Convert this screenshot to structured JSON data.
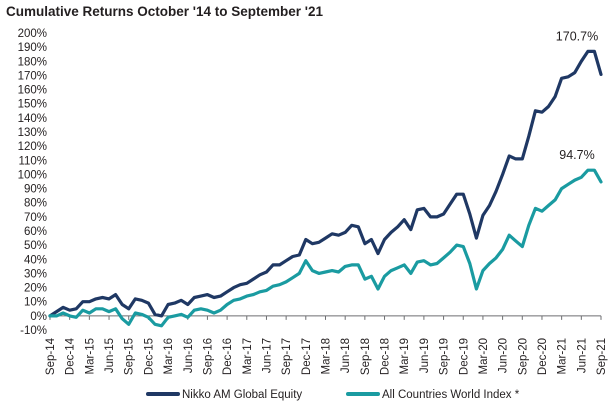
{
  "chart_data": {
    "type": "line",
    "title": "Cumulative Returns  October '14  to September '21",
    "ylim": [
      -10,
      200
    ],
    "ytick_step": 10,
    "ytick_suffix": "%",
    "grid": false,
    "legend_position": "bottom",
    "x": [
      "Sep-14",
      "Oct-14",
      "Nov-14",
      "Dec-14",
      "Jan-15",
      "Feb-15",
      "Mar-15",
      "Apr-15",
      "May-15",
      "Jun-15",
      "Jul-15",
      "Aug-15",
      "Sep-15",
      "Oct-15",
      "Nov-15",
      "Dec-15",
      "Jan-16",
      "Feb-16",
      "Mar-16",
      "Apr-16",
      "May-16",
      "Jun-16",
      "Jul-16",
      "Aug-16",
      "Sep-16",
      "Oct-16",
      "Nov-16",
      "Dec-16",
      "Jan-17",
      "Feb-17",
      "Mar-17",
      "Apr-17",
      "May-17",
      "Jun-17",
      "Jul-17",
      "Aug-17",
      "Sep-17",
      "Oct-17",
      "Nov-17",
      "Dec-17",
      "Jan-18",
      "Feb-18",
      "Mar-18",
      "Apr-18",
      "May-18",
      "Jun-18",
      "Jul-18",
      "Aug-18",
      "Sep-18",
      "Oct-18",
      "Nov-18",
      "Dec-18",
      "Jan-19",
      "Feb-19",
      "Mar-19",
      "Apr-19",
      "May-19",
      "Jun-19",
      "Jul-19",
      "Aug-19",
      "Sep-19",
      "Oct-19",
      "Nov-19",
      "Dec-19",
      "Jan-20",
      "Feb-20",
      "Mar-20",
      "Apr-20",
      "May-20",
      "Jun-20",
      "Jul-20",
      "Aug-20",
      "Sep-20",
      "Oct-20",
      "Nov-20",
      "Dec-20",
      "Jan-21",
      "Feb-21",
      "Mar-21",
      "Apr-21",
      "May-21",
      "Jun-21",
      "Jul-21",
      "Aug-21",
      "Sep-21"
    ],
    "tick_labels": [
      "Sep-14",
      "Dec-14",
      "Mar-15",
      "Jun-15",
      "Sep-15",
      "Dec-15",
      "Mar-16",
      "Jun-16",
      "Sep-16",
      "Dec-16",
      "Mar-17",
      "Jun-17",
      "Sep-17",
      "Dec-17",
      "Mar-18",
      "Jun-18",
      "Sep-18",
      "Dec-18",
      "Mar-19",
      "Jun-19",
      "Sep-19",
      "Dec-19",
      "Mar-20",
      "Jun-20",
      "Sep-20",
      "Dec-20",
      "Mar-21",
      "Jun-21",
      "Sep-21"
    ],
    "series": [
      {
        "name": "Nikko AM Global Equity",
        "color": "#1f3864",
        "end_label": "170.7%",
        "values": [
          0,
          3,
          6,
          4,
          5,
          10,
          10,
          12,
          13,
          12,
          15,
          8,
          5,
          12,
          11,
          9,
          1,
          0,
          8,
          9,
          11,
          8,
          13,
          14,
          15,
          13,
          14,
          17,
          20,
          22,
          23,
          26,
          29,
          31,
          36,
          36,
          39,
          42,
          43,
          54,
          51,
          52,
          55,
          58,
          57,
          59,
          64,
          63,
          51,
          54,
          44,
          54,
          59,
          63,
          68,
          61,
          75,
          76,
          70,
          70,
          72,
          79,
          86,
          86,
          72,
          55,
          71,
          78,
          88,
          100,
          113,
          111,
          111,
          127,
          145,
          144,
          148,
          155,
          168,
          169,
          172,
          180,
          187,
          187,
          170.7
        ]
      },
      {
        "name": "All Countries World Index *",
        "color": "#1a9ba1",
        "end_label": "94.7%",
        "values": [
          0,
          0,
          2,
          0,
          -1,
          4,
          2,
          5,
          5,
          3,
          5,
          -2,
          -6,
          2,
          1,
          -1,
          -6,
          -7,
          -1,
          0,
          1,
          -1,
          4,
          5,
          4,
          2,
          4,
          8,
          11,
          12,
          14,
          15,
          17,
          18,
          21,
          22,
          24,
          27,
          30,
          39,
          32,
          30,
          31,
          32,
          31,
          35,
          36,
          36,
          26,
          28,
          19,
          28,
          32,
          34,
          36,
          30,
          38,
          39,
          36,
          37,
          41,
          45,
          50,
          49,
          37,
          19,
          32,
          37,
          41,
          47,
          57,
          53,
          49,
          64,
          76,
          74,
          78,
          82,
          90,
          93,
          96,
          98,
          103,
          103,
          94.7
        ]
      }
    ]
  }
}
